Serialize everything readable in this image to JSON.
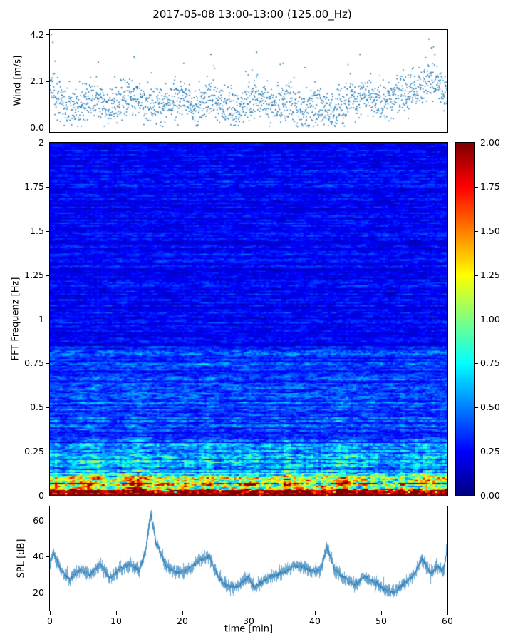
{
  "title": "2017-05-08 13:00-13:00 (125.00_Hz)",
  "colorbar": {
    "colormap": "jet",
    "min": 0,
    "max": 2,
    "tick_values": [
      0,
      0.25,
      0.5,
      0.75,
      1,
      1.25,
      1.5,
      1.75,
      2
    ],
    "tick_labels": [
      "0.00",
      "0.25",
      "0.50",
      "0.75",
      "1.00",
      "1.25",
      "1.50",
      "1.75",
      "2.00"
    ]
  },
  "chart_data": [
    {
      "id": "wind",
      "type": "scatter",
      "ylabel": "Wind [m/s]",
      "xlim": [
        0,
        60
      ],
      "ylim": [
        -0.21,
        4.41
      ],
      "ytick_values": [
        0.0,
        2.1,
        4.2
      ],
      "ytick_labels": [
        "0.0",
        "2.1",
        "4.2"
      ],
      "marker_color": "#1f77b4",
      "n_points": 1750,
      "seed": 42,
      "spread": 0.78,
      "mean_x": [
        0,
        1,
        2.5,
        4,
        5.5,
        7,
        8.5,
        10,
        11.5,
        13,
        14.5,
        16,
        18,
        20,
        22,
        24,
        26,
        28,
        30,
        32,
        34,
        36,
        38,
        40,
        42,
        44,
        46,
        48,
        50,
        52,
        54,
        56,
        57.5,
        59,
        60
      ],
      "mean_y": [
        2.0,
        1.3,
        0.9,
        0.8,
        1.1,
        1.4,
        0.9,
        1.1,
        1.3,
        1.5,
        1.0,
        0.9,
        1.2,
        1.3,
        0.9,
        1.4,
        0.9,
        0.8,
        1.2,
        1.3,
        1.0,
        1.2,
        0.9,
        1.0,
        0.8,
        0.9,
        1.3,
        1.5,
        1.1,
        1.3,
        1.5,
        1.7,
        2.1,
        1.8,
        1.5
      ],
      "outliers": [
        [
          0.2,
          4.2
        ],
        [
          0.45,
          3.85
        ],
        [
          0.8,
          3.0
        ],
        [
          7.3,
          2.95
        ],
        [
          12.7,
          3.2
        ],
        [
          20.2,
          2.9
        ],
        [
          24.3,
          3.3
        ],
        [
          31.2,
          3.4
        ],
        [
          35.2,
          2.9
        ],
        [
          46.8,
          3.3
        ],
        [
          57.2,
          4.0
        ],
        [
          57.6,
          3.6
        ],
        [
          58.1,
          3.3
        ]
      ],
      "description": "1 Hz wind speed scatter, mostly 0.2-2.5 m/s, gusts to 4.2 m/s near t=0 and t=57 min"
    },
    {
      "id": "spectrogram",
      "type": "heatmap",
      "ylabel": "FFT Frequenz [Hz]",
      "xlim": [
        0,
        60
      ],
      "ylim": [
        0,
        2
      ],
      "zlim": [
        0,
        2
      ],
      "colormap": "jet",
      "ytick_values": [
        0,
        0.25,
        0.5,
        0.75,
        1,
        1.25,
        1.5,
        1.75,
        2
      ],
      "ytick_labels": [
        "0",
        "0.25",
        "0.5",
        "0.75",
        "1",
        "1.25",
        "1.5",
        "1.75",
        "2"
      ],
      "nx": 160,
      "ny": 248,
      "seed": 7,
      "col_env_x": [
        0,
        2,
        4,
        6,
        8,
        10,
        12,
        14,
        16,
        18,
        20,
        22,
        24,
        26,
        28,
        30,
        32,
        34,
        36,
        38,
        40,
        42,
        44,
        46,
        48,
        50,
        52,
        54,
        56,
        58,
        60
      ],
      "col_env_y": [
        1.5,
        1.1,
        1.4,
        1.7,
        1.3,
        1.2,
        1.6,
        1.8,
        1.4,
        1.1,
        1.5,
        1.2,
        1.6,
        1.0,
        1.2,
        1.5,
        1.0,
        1.3,
        1.6,
        1.2,
        1.1,
        1.4,
        1.6,
        1.3,
        1.2,
        1.1,
        1.3,
        1.2,
        1.5,
        1.2,
        1.3
      ],
      "freq_profile": [
        [
          0.035,
          1.7
        ],
        [
          0.07,
          1.15
        ],
        [
          0.13,
          0.8
        ],
        [
          0.3,
          0.46
        ],
        [
          0.85,
          0.34
        ],
        [
          2.01,
          0.24
        ]
      ],
      "description": "broadband infrasound spectrogram: saturated red (~2.0) band below 0.1 Hz, cyan/green/yellow bursts up to ~0.8 Hz in time-localized columns, dark blue (~0.1-0.3) background above 1 Hz"
    },
    {
      "id": "spl",
      "type": "line",
      "ylabel": "SPL [dB]",
      "xlabel": "time [min]",
      "xlim": [
        0,
        60
      ],
      "ylim": [
        10,
        68
      ],
      "ytick_values": [
        20,
        40,
        60
      ],
      "ytick_labels": [
        "20",
        "40",
        "60"
      ],
      "xtick_values": [
        0,
        10,
        20,
        30,
        40,
        50,
        60
      ],
      "xtick_labels": [
        "0",
        "10",
        "20",
        "30",
        "40",
        "50",
        "60"
      ],
      "line_color": "#1f77b4",
      "seed": 99,
      "noise_halfwidth": 2.2,
      "env_x": [
        0,
        0.5,
        1.5,
        3,
        4.5,
        6,
        7.5,
        9,
        10.5,
        12,
        13.5,
        14.5,
        15.2,
        16,
        17.5,
        19,
        21,
        22.5,
        24,
        25.5,
        27,
        28.5,
        30,
        30.8,
        32,
        33.5,
        35,
        36.5,
        38,
        39.5,
        41,
        41.8,
        43,
        44.5,
        46,
        47.5,
        49,
        50.5,
        52,
        53.5,
        55,
        56.2,
        57.5,
        58.5,
        59.5,
        60
      ],
      "env_y": [
        37,
        42,
        33,
        27,
        33,
        30,
        36,
        28,
        33,
        36,
        32,
        45,
        64,
        48,
        35,
        31,
        33,
        38,
        40,
        28,
        23,
        24,
        29,
        23,
        26,
        29,
        31,
        34,
        35,
        32,
        33,
        46,
        33,
        28,
        24,
        29,
        26,
        22,
        20,
        25,
        30,
        39,
        31,
        34,
        33,
        44
      ],
      "description": "noisy SPL trace around 20-40 dB with a sharp 65 dB peak at t=15 min, a 46 dB spike near t=42 and spikes at t=0 and t=60"
    }
  ]
}
